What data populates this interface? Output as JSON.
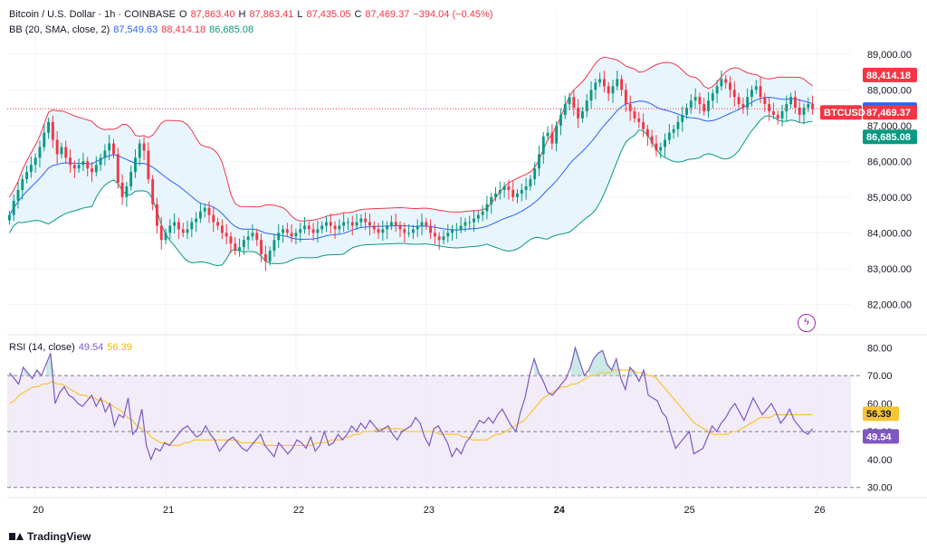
{
  "header": {
    "symbol": "Bitcoin / U.S. Dollar · 1h · COINBASE",
    "o_label": "O",
    "o_value": "87,863.40",
    "h_label": "H",
    "h_value": "87,863.41",
    "l_label": "L",
    "l_value": "87,435.05",
    "c_label": "C",
    "c_value": "87,469.37",
    "change": "−394.04 (−0.45%)",
    "bb_label": "BB (20, SMA, close, 2)",
    "bb_mid": "87,549.63",
    "bb_upper": "88,414.18",
    "bb_lower": "86,685.08",
    "rsi_label": "RSI (14, close)",
    "rsi_value": "49.54",
    "rsi_ma": "56.39"
  },
  "colors": {
    "up": "#089981",
    "down": "#f23645",
    "bb_mid": "#2962ff",
    "bb_upper": "#f23645",
    "bb_lower": "#089981",
    "bb_fill": "#e3f2fd",
    "rsi": "#7e57c2",
    "rsi_ma": "#f7c531",
    "rsi_band": "#ede7f6"
  },
  "footer": {
    "brand": "TradingView"
  },
  "icons": {
    "flash": "flash-icon"
  },
  "chart_data": [
    {
      "type": "candlestick",
      "title": "Bitcoin / U.S. Dollar · 1h · COINBASE",
      "ylim": [
        81200,
        89500
      ],
      "y_ticks": [
        "89,000.00",
        "88,000.00",
        "87,000.00",
        "86,000.00",
        "85,000.00",
        "84,000.00",
        "83,000.00",
        "82,000.00"
      ],
      "y_tick_values": [
        89000,
        88000,
        87000,
        86000,
        85000,
        84000,
        83000,
        82000
      ],
      "x_ticks": [
        "20",
        "21",
        "22",
        "23",
        "24",
        "25",
        "26"
      ],
      "x_tick_index": [
        6,
        36,
        66,
        96,
        126,
        156,
        186
      ],
      "price_labels": {
        "upper": {
          "text": "88,414.18",
          "value": 88414.18,
          "color": "#f23645"
        },
        "mid": {
          "text": "87,549.63",
          "value": 87549.63,
          "color": "#2962ff"
        },
        "close": {
          "text": "87,469.37",
          "value": 87469.37,
          "color": "#f23645",
          "tag": "BTCUSD"
        },
        "lower": {
          "text": "86,685.08",
          "value": 86685.08,
          "color": "#089981"
        }
      },
      "close": [
        84500,
        84900,
        85200,
        85500,
        85700,
        85900,
        86100,
        86400,
        86800,
        87100,
        86600,
        86200,
        86400,
        86100,
        85900,
        85800,
        85900,
        86000,
        85800,
        85700,
        85900,
        86100,
        86300,
        86500,
        86200,
        85400,
        85000,
        85300,
        85700,
        86100,
        86500,
        86300,
        85500,
        84800,
        84200,
        83800,
        84000,
        84200,
        84300,
        84100,
        84000,
        84100,
        84300,
        84400,
        84600,
        84700,
        84500,
        84300,
        84200,
        84000,
        83900,
        83700,
        83500,
        83600,
        83800,
        83900,
        84000,
        83800,
        83400,
        83200,
        83500,
        83800,
        84000,
        84100,
        84000,
        83900,
        84000,
        84100,
        84200,
        84100,
        84000,
        84100,
        84200,
        84300,
        84200,
        84100,
        84200,
        84300,
        84300,
        84200,
        84300,
        84400,
        84300,
        84200,
        84100,
        84000,
        84100,
        84200,
        84300,
        84200,
        84100,
        84000,
        84000,
        84100,
        84200,
        84300,
        84200,
        84000,
        83900,
        83800,
        83900,
        84000,
        84100,
        84100,
        84200,
        84300,
        84300,
        84400,
        84500,
        84600,
        84800,
        85000,
        85100,
        85200,
        85300,
        85200,
        85000,
        85100,
        85200,
        85300,
        85500,
        85800,
        86200,
        86700,
        86800,
        86500,
        87000,
        87300,
        87600,
        87800,
        87500,
        87200,
        87400,
        87700,
        88000,
        88200,
        88300,
        88100,
        87900,
        88100,
        88300,
        88000,
        87600,
        87400,
        87200,
        87100,
        86900,
        86700,
        86500,
        86300,
        86400,
        86600,
        86800,
        86900,
        87100,
        87300,
        87500,
        87700,
        87800,
        87600,
        87400,
        87700,
        87900,
        88100,
        88300,
        88200,
        88000,
        87800,
        87600,
        87500,
        87800,
        88000,
        88100,
        87800,
        87600,
        87400,
        87300,
        87200,
        87400,
        87600,
        87800,
        87500,
        87300,
        87500,
        87600,
        87469
      ],
      "open_offset_note": "",
      "bb_mid_values": [
        83200,
        83400,
        83700,
        83900,
        84100,
        84300,
        84600,
        84900,
        85100,
        85300,
        85500,
        85650,
        85750,
        85800,
        85850,
        85850,
        85800,
        85700,
        85600,
        85500,
        85400,
        85250,
        85100,
        84950,
        84800,
        84650,
        84500,
        84400,
        84300,
        84250,
        84200,
        84150,
        84100,
        84100,
        84050,
        84050,
        84050,
        84050,
        84050,
        84050,
        84050,
        84050,
        84100,
        84100,
        84100,
        84150,
        84150,
        84150,
        84200,
        84200,
        84300,
        84400,
        84500,
        84600,
        84750,
        84900,
        85100,
        85300,
        85600,
        85900,
        86200,
        86500,
        86800,
        87100,
        87350,
        87500,
        87600,
        87600,
        87500,
        87400,
        87350,
        87300,
        87350,
        87400,
        87500,
        87550,
        87500,
        87450,
        87500,
        87550
      ],
      "bb_mid_x_start": 0
    },
    {
      "type": "line",
      "title": "RSI (14, close)",
      "ylim": [
        27,
        83
      ],
      "y_ticks": [
        "80.00",
        "70.00",
        "60.00",
        "50.00",
        "40.00",
        "30.00"
      ],
      "y_tick_values": [
        80,
        70,
        60,
        50,
        40,
        30
      ],
      "bands": {
        "upper": 70,
        "middle": 50,
        "lower": 30
      },
      "value_labels": {
        "rsi": {
          "text": "49.54",
          "value": 49.54
        },
        "ma": {
          "text": "56.39",
          "value": 56.39
        }
      },
      "series": [
        {
          "name": "RSI",
          "values": [
            71,
            69,
            67,
            73,
            71,
            69,
            72,
            70,
            74,
            78,
            60,
            64,
            66,
            63,
            62,
            60,
            59,
            61,
            63,
            59,
            62,
            57,
            60,
            52,
            56,
            55,
            62,
            49,
            51,
            58,
            45,
            40,
            44,
            43,
            46,
            45,
            47,
            49,
            51,
            52,
            50,
            48,
            49,
            52,
            49,
            47,
            43,
            45,
            47,
            48,
            46,
            44,
            43,
            45,
            47,
            49,
            45,
            43,
            41,
            46,
            44,
            42,
            44,
            47,
            46,
            44,
            48,
            43,
            45,
            50,
            45,
            46,
            49,
            47,
            49,
            52,
            50,
            53,
            51,
            54,
            52,
            50,
            51,
            52,
            49,
            47,
            50,
            51,
            52,
            55,
            53,
            48,
            45,
            51,
            52,
            49,
            46,
            41,
            44,
            42,
            46,
            48,
            51,
            54,
            53,
            55,
            53,
            56,
            58,
            55,
            52,
            50,
            57,
            62,
            70,
            76,
            71,
            68,
            64,
            63,
            65,
            67,
            69,
            73,
            80,
            75,
            70,
            72,
            76,
            78,
            79,
            74,
            72,
            76,
            69,
            65,
            73,
            71,
            68,
            72,
            63,
            62,
            61,
            57,
            55,
            49,
            44,
            46,
            48,
            50,
            42,
            43,
            44,
            48,
            52,
            50,
            53,
            55,
            58,
            60,
            57,
            54,
            58,
            62,
            59,
            56,
            58,
            60,
            57,
            53,
            55,
            58,
            54,
            52,
            50,
            49,
            51
          ]
        },
        {
          "name": "RSI MA",
          "values": [
            60,
            61,
            63,
            64,
            65,
            66,
            66,
            67,
            67,
            68,
            67,
            67,
            66,
            65,
            64,
            63,
            63,
            62,
            62,
            61,
            61,
            60,
            59,
            58,
            57,
            55,
            54,
            52,
            51,
            50,
            48,
            47,
            46,
            46,
            45,
            45,
            45,
            46,
            46,
            47,
            47,
            47,
            47,
            47,
            47,
            47,
            47,
            47,
            47,
            46,
            46,
            46,
            46,
            46,
            45,
            45,
            45,
            45,
            45,
            45,
            45,
            45,
            45,
            45,
            45,
            46,
            46,
            46,
            47,
            47,
            47,
            48,
            48,
            49,
            49,
            50,
            50,
            50,
            51,
            51,
            51,
            51,
            51,
            51,
            50,
            50,
            50,
            50,
            50,
            50,
            50,
            49,
            49,
            49,
            49,
            49,
            48,
            48,
            47,
            47,
            47,
            47,
            48,
            49,
            49,
            50,
            51,
            52,
            53,
            54,
            56,
            58,
            60,
            62,
            63,
            64,
            65,
            66,
            66,
            67,
            67,
            68,
            69,
            70,
            70,
            71,
            71,
            71,
            72,
            72,
            72,
            72,
            72,
            71,
            71,
            70,
            70,
            69,
            67,
            65,
            63,
            61,
            59,
            57,
            55,
            53,
            52,
            51,
            50,
            49,
            49,
            49,
            49,
            50,
            50,
            51,
            52,
            53,
            54,
            55,
            55,
            55,
            56,
            56,
            56,
            56,
            56,
            56,
            56,
            56,
            56
          ]
        }
      ]
    }
  ]
}
